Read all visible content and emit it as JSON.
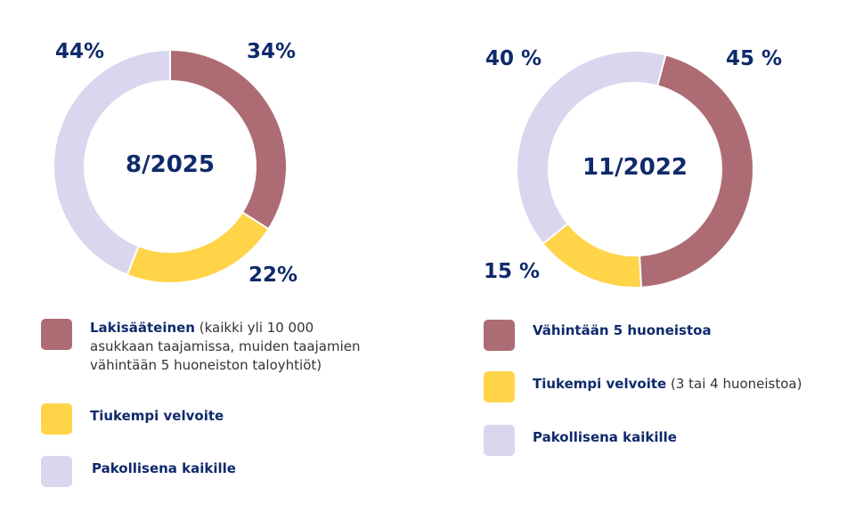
{
  "colors": {
    "red": "#ad6c73",
    "yellow": "#ffd448",
    "lavender": "#d9d7ee",
    "navy": "#0f2a6b"
  },
  "chart_data": [
    {
      "type": "pie",
      "title": "8/2025",
      "categories": [
        "Lakisääteinen",
        "Tiukempi velvoite",
        "Pakollisena kaikille"
      ],
      "values": [
        34,
        22,
        44
      ],
      "labels": [
        "34%",
        "22%",
        "44%"
      ],
      "legend": [
        {
          "name": "Lakisääteinen",
          "note": "(kaikki yli 10 000 asukkaan taajamissa, muiden taajamien vähintään 5 huoneiston taloyhtiöt)"
        },
        {
          "name": "Tiukempi velvoite",
          "note": ""
        },
        {
          "name": "Pakollisena kaikille",
          "note": ""
        }
      ]
    },
    {
      "type": "pie",
      "title": "11/2022",
      "categories": [
        "Vähintään 5 huoneistoa",
        "Tiukempi velvoite",
        "Pakollisena kaikille"
      ],
      "values": [
        45,
        15,
        40
      ],
      "labels": [
        "45 %",
        "15 %",
        "40 %"
      ],
      "legend": [
        {
          "name": "Vähintään 5 huoneistoa",
          "note": ""
        },
        {
          "name": "Tiukempi velvoite",
          "note": "(3 tai 4 huoneistoa)"
        },
        {
          "name": "Pakollisena kaikille",
          "note": ""
        }
      ]
    }
  ]
}
